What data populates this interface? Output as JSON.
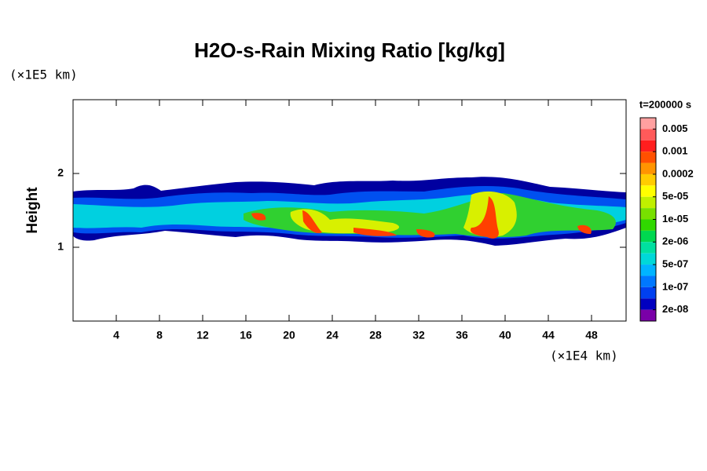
{
  "chart_data": {
    "type": "contour",
    "title": "H2O-s-Rain Mixing Ratio [kg/kg]",
    "y_label": "Height",
    "y_unit": "(×1E5 km)",
    "x_unit": "(×1E4 km)",
    "xlim": [
      0,
      51.2
    ],
    "xticks": [
      4,
      8,
      12,
      16,
      20,
      24,
      28,
      32,
      36,
      40,
      44,
      48
    ],
    "ylim": [
      0,
      3
    ],
    "yticks": [
      1,
      2
    ],
    "colorbar": {
      "title": "t=200000 s",
      "colors": [
        "#ffa0a0",
        "#ff5a5a",
        "#ff1e1e",
        "#ff5000",
        "#ff9400",
        "#ffcc00",
        "#ffff00",
        "#c0f000",
        "#78e000",
        "#30d800",
        "#00d850",
        "#00e0a0",
        "#00d8d8",
        "#00b4ff",
        "#0078ff",
        "#0040f0",
        "#0000c0",
        "#7a00a8"
      ],
      "ticks": [
        0.005,
        0.001,
        0.0002,
        {
          "value": 5e-05,
          "label": "5e-05"
        },
        {
          "value": 1e-05,
          "label": "1e-05"
        },
        {
          "value": 2e-06,
          "label": "2e-06"
        },
        {
          "value": 5e-07,
          "label": "5e-07"
        },
        {
          "value": 1e-07,
          "label": "1e-07"
        },
        {
          "value": 2e-08,
          "label": "2e-08"
        }
      ]
    }
  }
}
